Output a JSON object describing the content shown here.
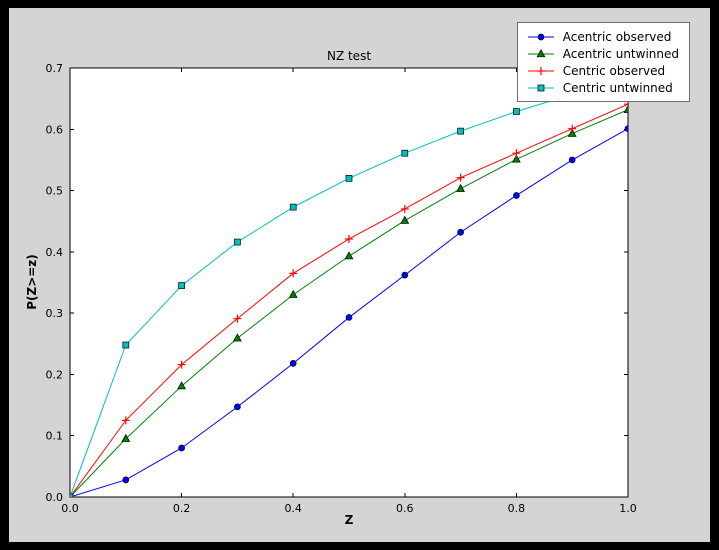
{
  "chart_data": {
    "type": "line",
    "title": "NZ test",
    "xlabel": "Z",
    "ylabel": "P(Z>=z)",
    "xlim": [
      0.0,
      1.0
    ],
    "ylim": [
      0.0,
      0.7
    ],
    "xticks": [
      0.0,
      0.2,
      0.4,
      0.6,
      0.8,
      1.0
    ],
    "xtick_labels": [
      "0.0",
      "0.2",
      "0.4",
      "0.6",
      "0.8",
      "1.0"
    ],
    "yticks": [
      0.0,
      0.1,
      0.2,
      0.3,
      0.4,
      0.5,
      0.6,
      0.7
    ],
    "ytick_labels": [
      "0.0",
      "0.1",
      "0.2",
      "0.3",
      "0.4",
      "0.5",
      "0.6",
      "0.7"
    ],
    "grid": false,
    "legend_position": "upper right",
    "x": [
      0.0,
      0.1,
      0.2,
      0.3,
      0.4,
      0.5,
      0.6,
      0.7,
      0.8,
      0.9,
      1.0
    ],
    "series": [
      {
        "name": "Acentric observed",
        "color": "#0000ff",
        "marker": "circle",
        "values": [
          0.0,
          0.028,
          0.08,
          0.147,
          0.218,
          0.293,
          0.362,
          0.432,
          0.492,
          0.55,
          0.601
        ]
      },
      {
        "name": "Acentric untwinned",
        "color": "#008000",
        "marker": "triangle-up",
        "values": [
          0.0,
          0.095,
          0.181,
          0.259,
          0.33,
          0.393,
          0.451,
          0.503,
          0.551,
          0.593,
          0.632
        ]
      },
      {
        "name": "Centric observed",
        "color": "#ff0000",
        "marker": "plus",
        "values": [
          0.0,
          0.125,
          0.216,
          0.291,
          0.365,
          0.421,
          0.47,
          0.521,
          0.561,
          0.601,
          0.641
        ]
      },
      {
        "name": "Centric untwinned",
        "color": "#00bfbf",
        "marker": "square",
        "values": [
          0.0,
          0.248,
          0.345,
          0.416,
          0.473,
          0.52,
          0.561,
          0.597,
          0.629,
          0.657,
          0.683
        ]
      }
    ],
    "axes_facecolor": "#ffffff",
    "figure_facecolor": "#d4d4d4",
    "frame_color": "#000000"
  }
}
